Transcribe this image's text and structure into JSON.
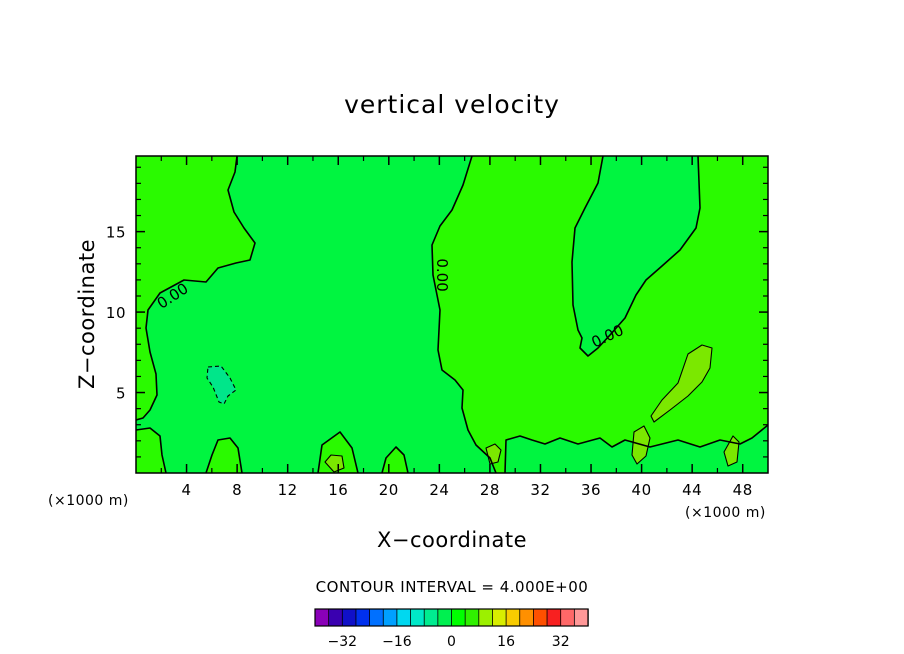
{
  "chart_data": {
    "type": "heatmap",
    "title": "vertical velocity",
    "xlabel": "X−coordinate",
    "ylabel": "Z−coordinate",
    "x_unit_left": "(×1000 m)",
    "x_unit_right": "(×1000 m)",
    "xlim": [
      0,
      50
    ],
    "ylim": [
      0,
      19.7
    ],
    "x_ticks": [
      {
        "value": 4,
        "label": "4"
      },
      {
        "value": 8,
        "label": "8"
      },
      {
        "value": 12,
        "label": "12"
      },
      {
        "value": 16,
        "label": "16"
      },
      {
        "value": 20,
        "label": "20"
      },
      {
        "value": 24,
        "label": "24"
      },
      {
        "value": 28,
        "label": "28"
      },
      {
        "value": 32,
        "label": "32"
      },
      {
        "value": 36,
        "label": "36"
      },
      {
        "value": 40,
        "label": "40"
      },
      {
        "value": 44,
        "label": "44"
      },
      {
        "value": 48,
        "label": "48"
      }
    ],
    "y_ticks": [
      {
        "value": 5,
        "label": "5"
      },
      {
        "value": 10,
        "label": "10"
      },
      {
        "value": 15,
        "label": "15"
      }
    ],
    "contour_interval_label": "CONTOUR INTERVAL = 4.000E+00",
    "contour_labels": [
      {
        "text": "0.00",
        "x": 2.9,
        "y": 11.0,
        "angle": -33
      },
      {
        "text": "0.00",
        "x": 24.2,
        "y": 12.3,
        "angle": 90
      },
      {
        "text": "0.00",
        "x": 37.3,
        "y": 8.5,
        "angle": -25
      }
    ],
    "colorbar": {
      "levels": [
        -36,
        -32,
        -28,
        -24,
        -20,
        -16,
        -12,
        -8,
        -4,
        0,
        4,
        8,
        12,
        16,
        20,
        24,
        28,
        32,
        36
      ],
      "colors": [
        "#8a00b8",
        "#3a00b0",
        "#1010c8",
        "#0030ee",
        "#0070ff",
        "#00a0ff",
        "#00d8f0",
        "#00e8c8",
        "#00ec90",
        "#00f050",
        "#00ff00",
        "#30f000",
        "#9cf000",
        "#d8ee00",
        "#f8cc00",
        "#ff9000",
        "#ff5000",
        "#f82020",
        "#ff6868",
        "#ff9898"
      ],
      "tick_labels": [
        {
          "value": -32,
          "label": "−32"
        },
        {
          "value": -16,
          "label": "−16"
        },
        {
          "value": 0,
          "label": "0"
        },
        {
          "value": 16,
          "label": "16"
        },
        {
          "value": 32,
          "label": "32"
        }
      ]
    },
    "region_colors": {
      "background_positive": "#2afa00",
      "zero_to_minus4": "#00f540",
      "minus4_to_minus8": "#00e68a",
      "plus4_to_plus8": "#7be800"
    },
    "grid": false,
    "legend": "colorbar-bottom"
  }
}
